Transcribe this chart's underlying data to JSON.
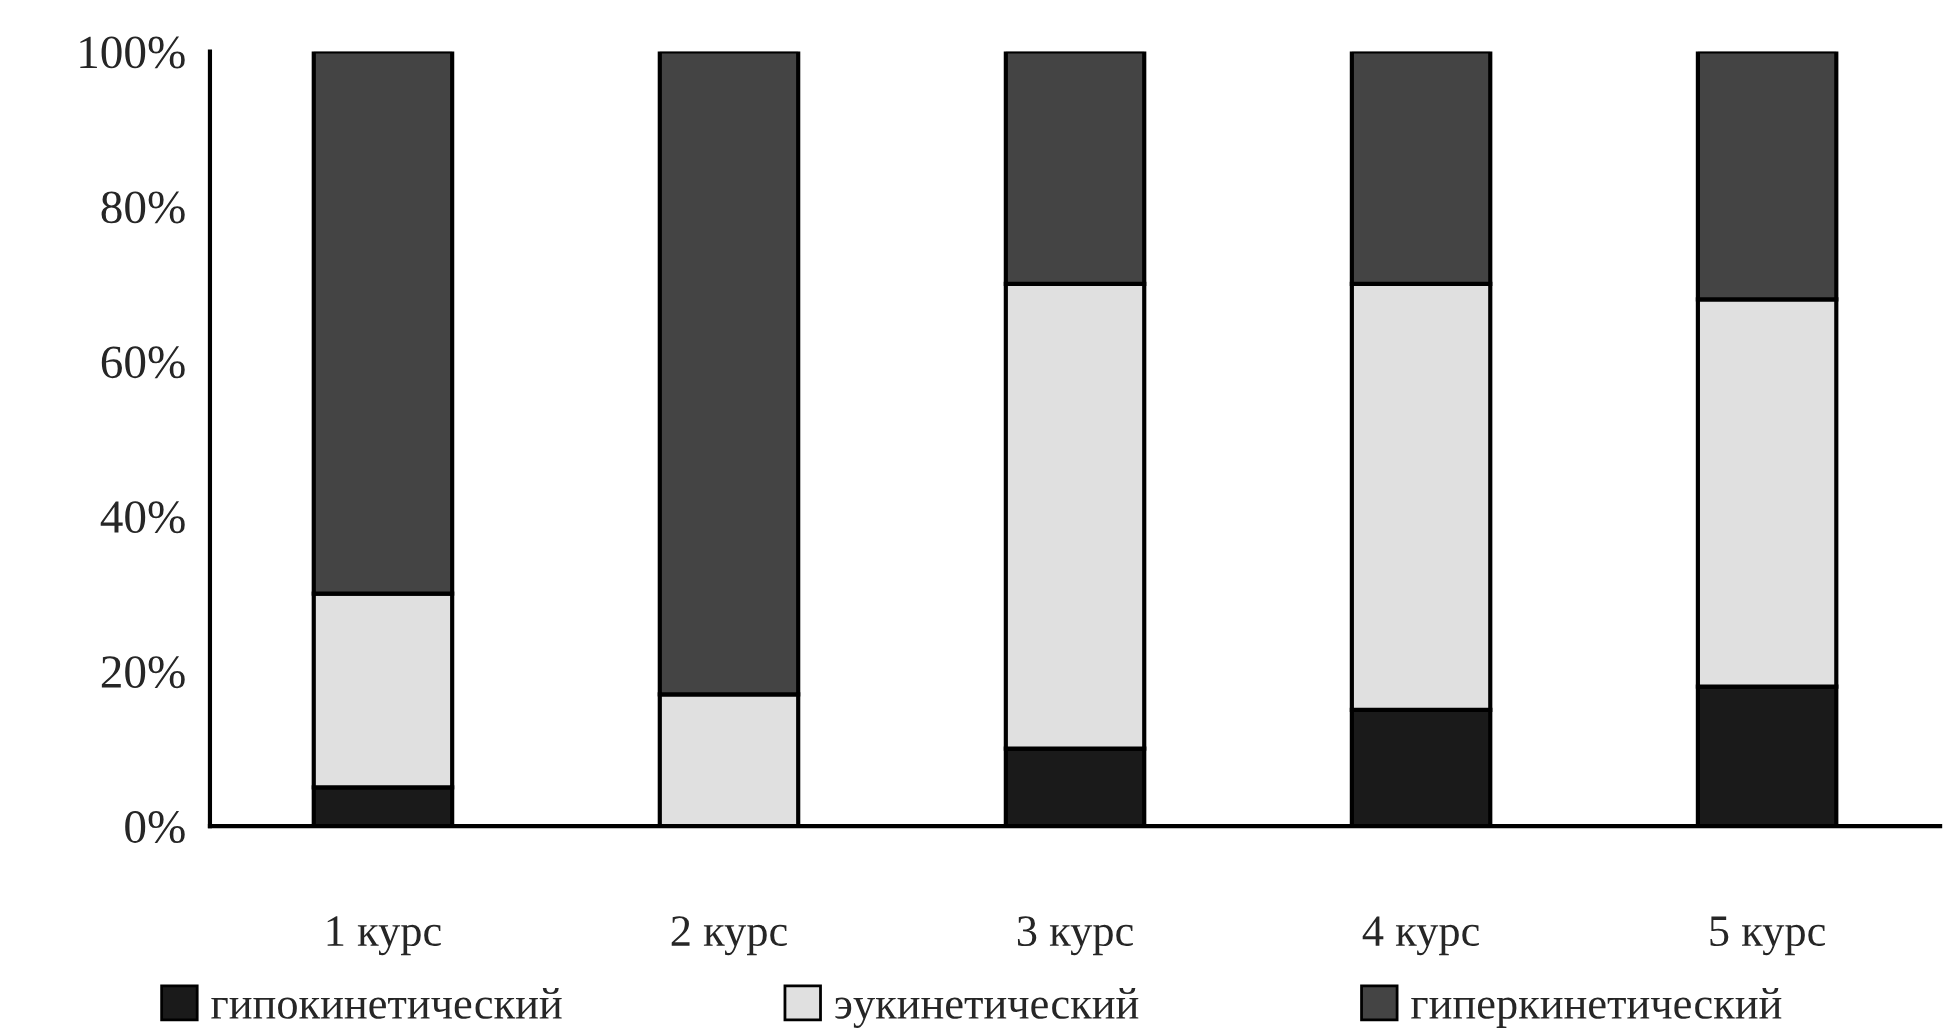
{
  "chart_data": {
    "type": "bar",
    "stacked": true,
    "categories": [
      "1 курс",
      "2 курс",
      "3 курс",
      "4 курс",
      "5 курс"
    ],
    "series": [
      {
        "name": "гипокинетический",
        "color": "#1a1a1a",
        "values": [
          5,
          0,
          10,
          15,
          18
        ]
      },
      {
        "name": "эукинетический",
        "color": "#e0e0e0",
        "values": [
          25,
          17,
          60,
          55,
          50
        ]
      },
      {
        "name": "гиперкинетический",
        "color": "#444444",
        "values": [
          70,
          83,
          30,
          30,
          32
        ]
      }
    ],
    "ylim": [
      0,
      100
    ],
    "yticks": [
      {
        "value": 0,
        "label": "0%"
      },
      {
        "value": 20,
        "label": "20%"
      },
      {
        "value": 40,
        "label": "40%"
      },
      {
        "value": 60,
        "label": "60%"
      },
      {
        "value": 80,
        "label": "80%"
      },
      {
        "value": 100,
        "label": "100%"
      }
    ],
    "grid": false,
    "legend": "bottom"
  }
}
